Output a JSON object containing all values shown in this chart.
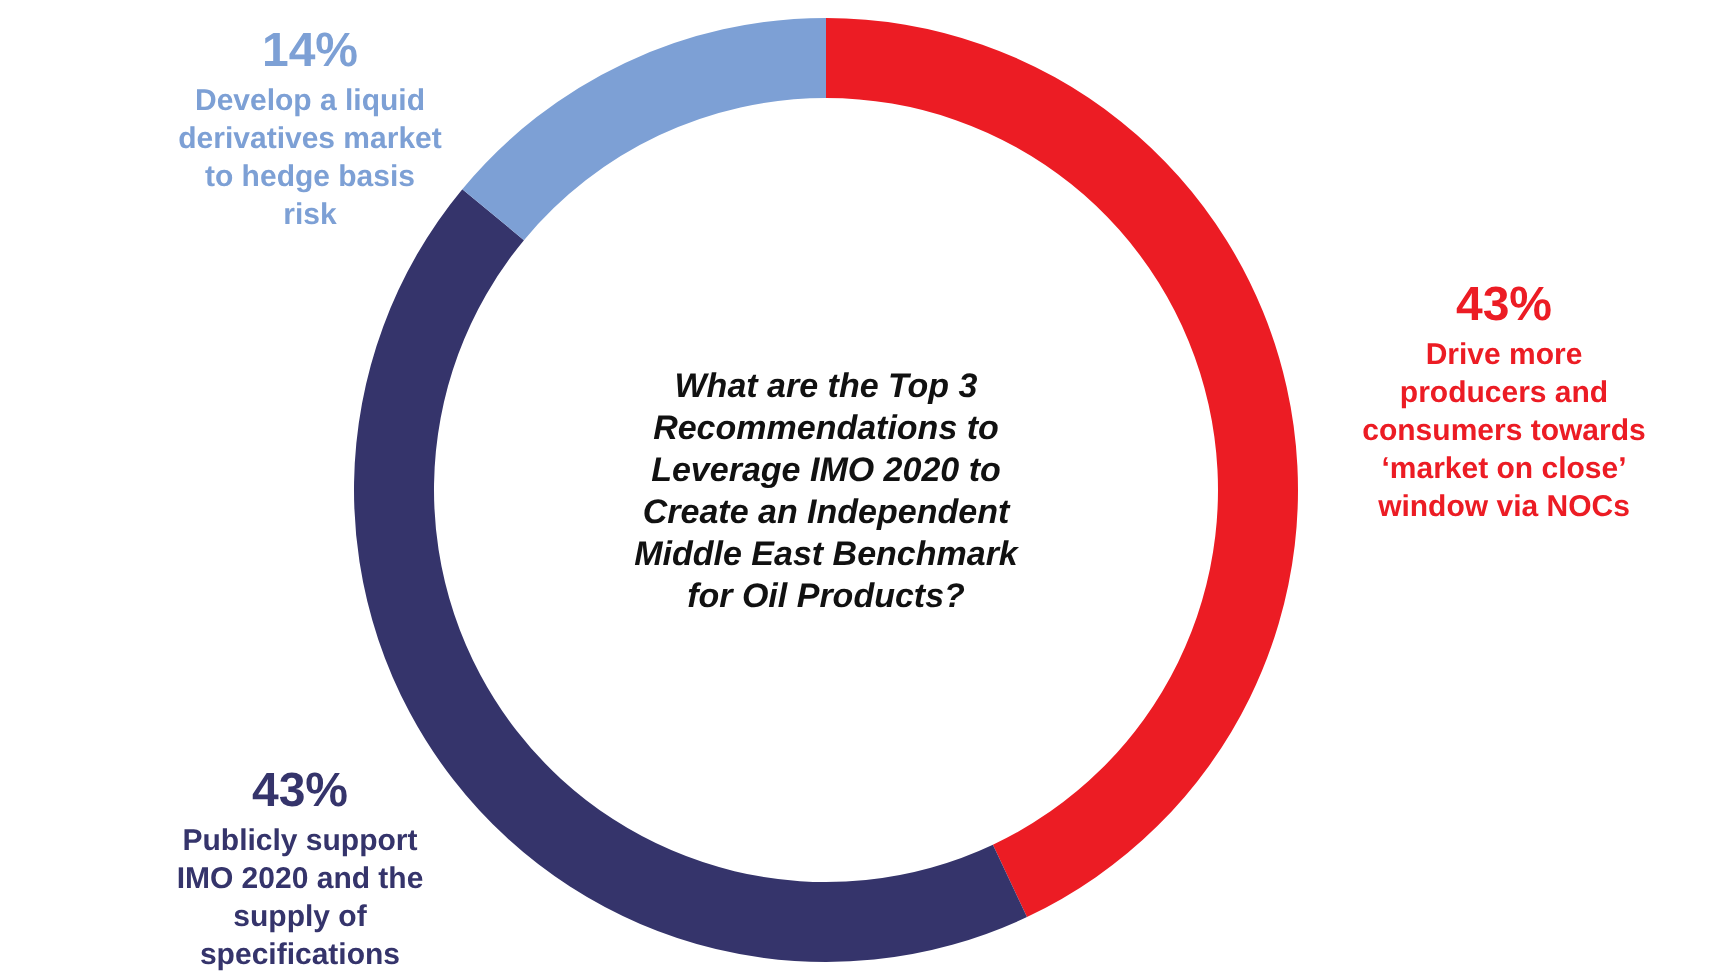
{
  "chart_data": {
    "type": "donut",
    "title": "What are the Top 3 Recommendations to Leverage IMO 2020 to Create an Independent Middle East Benchmark for Oil Products?",
    "categories": [
      "Drive more producers and consumers towards ‘market on close’ window via NOCs",
      "Publicly support IMO 2020 and the supply of specifications",
      "Develop a liquid derivatives market to hedge basis risk"
    ],
    "values": [
      43,
      43,
      14
    ],
    "value_labels": [
      "43%",
      "43%",
      "14%"
    ],
    "colors": [
      "#ec1c24",
      "#35346b",
      "#7da0d5"
    ]
  }
}
